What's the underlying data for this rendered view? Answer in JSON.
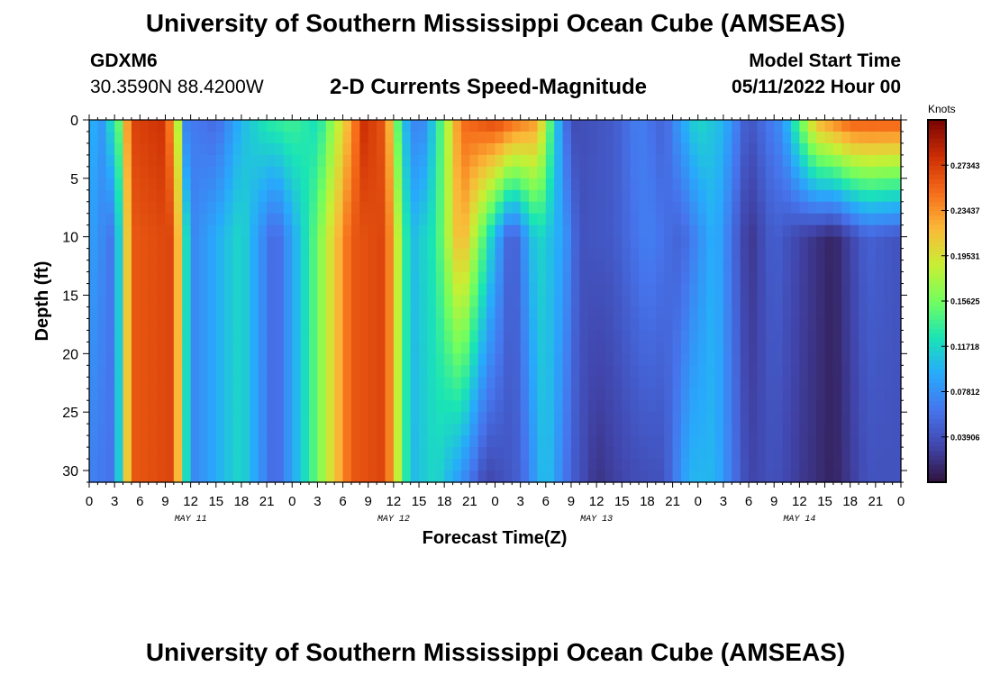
{
  "header": {
    "title": "University of Southern Mississippi Ocean Cube (AMSEAS)",
    "station_id": "GDXM6",
    "station_coords": "30.3590N  88.4200W",
    "chart_title": "2-D Currents Speed-Magnitude",
    "start_label": "Model Start Time",
    "start_value": "05/11/2022 Hour 00"
  },
  "footer": {
    "title": "University of Southern Mississippi Ocean Cube (AMSEAS)"
  },
  "chart_data": {
    "type": "heatmap",
    "title": "2-D Currents Speed-Magnitude",
    "xlabel": "Forecast Time(Z)",
    "ylabel": "Depth (ft)",
    "x_range_hours": [
      0,
      96
    ],
    "y_range_ft": [
      0,
      31
    ],
    "x_tick_step_hours": 3,
    "x_tick_labels": [
      "0",
      "3",
      "6",
      "9",
      "12",
      "15",
      "18",
      "21",
      "0",
      "3",
      "6",
      "9",
      "12",
      "15",
      "18",
      "21",
      "0",
      "3",
      "6",
      "9",
      "12",
      "15",
      "18",
      "21",
      "0",
      "3",
      "6",
      "9",
      "12",
      "15",
      "18",
      "21",
      "0"
    ],
    "y_ticks": [
      0,
      5,
      10,
      15,
      20,
      25,
      30
    ],
    "date_labels": [
      {
        "label": "MAY 11",
        "hour": 12
      },
      {
        "label": "MAY 12",
        "hour": 36
      },
      {
        "label": "MAY 13",
        "hour": 60
      },
      {
        "label": "MAY 14",
        "hour": 84
      }
    ],
    "colorbar": {
      "label": "Knots",
      "min": 0.0,
      "max": 0.3125,
      "ticks": [
        "0.03906",
        "0.07812",
        "0.11718",
        "0.15625",
        "0.19531",
        "0.23437",
        "0.27343"
      ]
    },
    "surface_speed_knots": [
      {
        "hour": 0,
        "v": 0.1
      },
      {
        "hour": 1.5,
        "v": 0.085
      },
      {
        "hour": 3.5,
        "v": 0.15
      },
      {
        "hour": 5,
        "v": 0.27
      },
      {
        "hour": 9,
        "v": 0.28
      },
      {
        "hour": 10.5,
        "v": 0.18
      },
      {
        "hour": 11.5,
        "v": 0.07
      },
      {
        "hour": 15,
        "v": 0.055
      },
      {
        "hour": 18,
        "v": 0.1
      },
      {
        "hour": 21,
        "v": 0.13
      },
      {
        "hour": 24,
        "v": 0.14
      },
      {
        "hour": 27,
        "v": 0.12
      },
      {
        "hour": 30,
        "v": 0.2
      },
      {
        "hour": 32.5,
        "v": 0.28
      },
      {
        "hour": 35,
        "v": 0.26
      },
      {
        "hour": 37,
        "v": 0.11
      },
      {
        "hour": 39,
        "v": 0.06
      },
      {
        "hour": 41,
        "v": 0.12
      },
      {
        "hour": 44,
        "v": 0.25
      },
      {
        "hour": 48,
        "v": 0.27
      },
      {
        "hour": 53,
        "v": 0.23
      },
      {
        "hour": 55,
        "v": 0.12
      },
      {
        "hour": 57,
        "v": 0.035
      },
      {
        "hour": 62,
        "v": 0.045
      },
      {
        "hour": 65,
        "v": 0.07
      },
      {
        "hour": 68,
        "v": 0.05
      },
      {
        "hour": 70,
        "v": 0.09
      },
      {
        "hour": 72,
        "v": 0.12
      },
      {
        "hour": 75,
        "v": 0.1
      },
      {
        "hour": 78,
        "v": 0.04
      },
      {
        "hour": 82,
        "v": 0.08
      },
      {
        "hour": 86,
        "v": 0.22
      },
      {
        "hour": 90,
        "v": 0.26
      },
      {
        "hour": 96,
        "v": 0.26
      }
    ],
    "depth_10ft_speed_knots": [
      {
        "hour": 0,
        "v": 0.09
      },
      {
        "hour": 3,
        "v": 0.06
      },
      {
        "hour": 5,
        "v": 0.26
      },
      {
        "hour": 10,
        "v": 0.27
      },
      {
        "hour": 12,
        "v": 0.07
      },
      {
        "hour": 18,
        "v": 0.12
      },
      {
        "hour": 22,
        "v": 0.05
      },
      {
        "hour": 26,
        "v": 0.13
      },
      {
        "hour": 31,
        "v": 0.26
      },
      {
        "hour": 35,
        "v": 0.27
      },
      {
        "hour": 38,
        "v": 0.1
      },
      {
        "hour": 41,
        "v": 0.13
      },
      {
        "hour": 44,
        "v": 0.23
      },
      {
        "hour": 48,
        "v": 0.1
      },
      {
        "hour": 50,
        "v": 0.04
      },
      {
        "hour": 53,
        "v": 0.12
      },
      {
        "hour": 56,
        "v": 0.09
      },
      {
        "hour": 58,
        "v": 0.04
      },
      {
        "hour": 62,
        "v": 0.045
      },
      {
        "hour": 66,
        "v": 0.07
      },
      {
        "hour": 70,
        "v": 0.05
      },
      {
        "hour": 74,
        "v": 0.1
      },
      {
        "hour": 78,
        "v": 0.02
      },
      {
        "hour": 81,
        "v": 0.05
      },
      {
        "hour": 84,
        "v": 0.03
      },
      {
        "hour": 88,
        "v": 0.01
      },
      {
        "hour": 92,
        "v": 0.05
      },
      {
        "hour": 96,
        "v": 0.04
      }
    ],
    "bottom_speed_knots": [
      {
        "hour": 0,
        "v": 0.07
      },
      {
        "hour": 3,
        "v": 0.06
      },
      {
        "hour": 5,
        "v": 0.26
      },
      {
        "hour": 10,
        "v": 0.27
      },
      {
        "hour": 12,
        "v": 0.07
      },
      {
        "hour": 18,
        "v": 0.12
      },
      {
        "hour": 22,
        "v": 0.05
      },
      {
        "hour": 26,
        "v": 0.13
      },
      {
        "hour": 31,
        "v": 0.26
      },
      {
        "hour": 35,
        "v": 0.27
      },
      {
        "hour": 38,
        "v": 0.1
      },
      {
        "hour": 41,
        "v": 0.12
      },
      {
        "hour": 44,
        "v": 0.08
      },
      {
        "hour": 47,
        "v": 0.03
      },
      {
        "hour": 51,
        "v": 0.05
      },
      {
        "hour": 54,
        "v": 0.11
      },
      {
        "hour": 57,
        "v": 0.05
      },
      {
        "hour": 60,
        "v": 0.02
      },
      {
        "hour": 64,
        "v": 0.035
      },
      {
        "hour": 68,
        "v": 0.04
      },
      {
        "hour": 71,
        "v": 0.1
      },
      {
        "hour": 74,
        "v": 0.1
      },
      {
        "hour": 78,
        "v": 0.03
      },
      {
        "hour": 81,
        "v": 0.04
      },
      {
        "hour": 84,
        "v": 0.025
      },
      {
        "hour": 88,
        "v": 0.01
      },
      {
        "hour": 92,
        "v": 0.04
      },
      {
        "hour": 96,
        "v": 0.04
      }
    ]
  }
}
